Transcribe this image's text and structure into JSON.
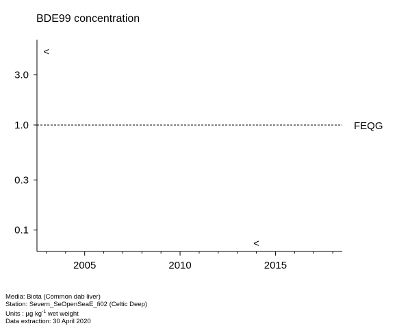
{
  "chart_data": {
    "type": "scatter",
    "title": "BDE99 concentration",
    "xlabel": "",
    "ylabel": "",
    "y_scale": "log",
    "xlim": [
      2002.5,
      2018.5
    ],
    "ylim": [
      0.0625,
      6.5
    ],
    "x_ticks": [
      {
        "value": 2005,
        "label": "2005"
      },
      {
        "value": 2010,
        "label": "2010"
      },
      {
        "value": 2015,
        "label": "2015"
      }
    ],
    "x_minor_ticks": [
      2003,
      2004,
      2006,
      2007,
      2008,
      2009,
      2011,
      2012,
      2013,
      2014,
      2016,
      2017,
      2018
    ],
    "y_ticks": [
      {
        "value": 0.1,
        "label": "0.1"
      },
      {
        "value": 0.3,
        "label": "0.3"
      },
      {
        "value": 1.0,
        "label": "1.0"
      },
      {
        "value": 3.0,
        "label": "3.0"
      }
    ],
    "points": [
      {
        "x": 2003,
        "y": 5.0,
        "marker": "<"
      },
      {
        "x": 2014,
        "y": 0.075,
        "marker": "<"
      }
    ],
    "reference_lines": [
      {
        "y": 1.0,
        "label": "FEQG",
        "style": "dashed"
      }
    ],
    "grid": false
  },
  "footer": {
    "media": "Media: Biota (Common dab liver)",
    "station": "Station: Severn_SeOpenSeaE_fi02 (Celtic Deep)",
    "units_prefix": "Units : µg kg",
    "units_exp": "-1",
    "units_suffix": " wet weight",
    "extraction": "Data extraction: 30 April 2020"
  }
}
